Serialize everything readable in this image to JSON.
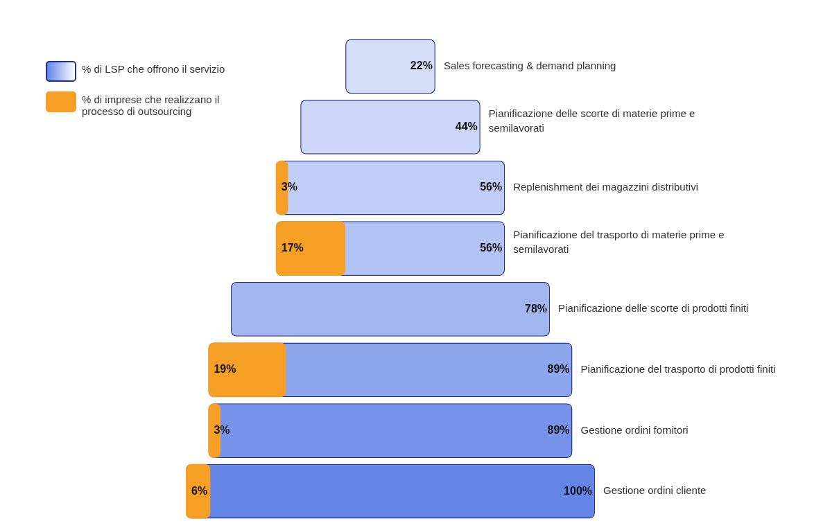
{
  "chart_data": {
    "type": "other",
    "legend": "top left",
    "categories": [
      "Sales forecasting & demand planning",
      "Pianificazione delle scorte di materie prime e semilavorati",
      "Replenishment dei magazzini distributivi",
      "Pianificazione del trasporto di materie prime e semilavorati",
      "Pianificazione delle scorte di prodotti finiti",
      "Pianificazione del trasporto di prodotti finiti",
      "Gestione ordini fornitori",
      "Gestione ordini cliente"
    ],
    "series": [
      {
        "name": "% di LSP che offrono il servizio",
        "color": "#6285e7",
        "colors": [
          "#d6defa",
          "#ccd7f8",
          "#c0cdf5",
          "#b3c3f3",
          "#a2b6f0",
          "#8ea6ed",
          "#7894ea",
          "#6285e7"
        ],
        "values": [
          22,
          44,
          56,
          56,
          78,
          89,
          89,
          100
        ],
        "value_labels": [
          "22%",
          "44%",
          "56%",
          "56%",
          "78%",
          "89%",
          "89%",
          "100%"
        ]
      },
      {
        "name": "% di imprese che realizzano il processo di outsourcing",
        "color": "#f5a025",
        "values": [
          null,
          null,
          3,
          17,
          null,
          19,
          3,
          6
        ],
        "value_labels": [
          null,
          null,
          "3%",
          "17%",
          null,
          "19%",
          "3%",
          "6%"
        ]
      }
    ]
  }
}
